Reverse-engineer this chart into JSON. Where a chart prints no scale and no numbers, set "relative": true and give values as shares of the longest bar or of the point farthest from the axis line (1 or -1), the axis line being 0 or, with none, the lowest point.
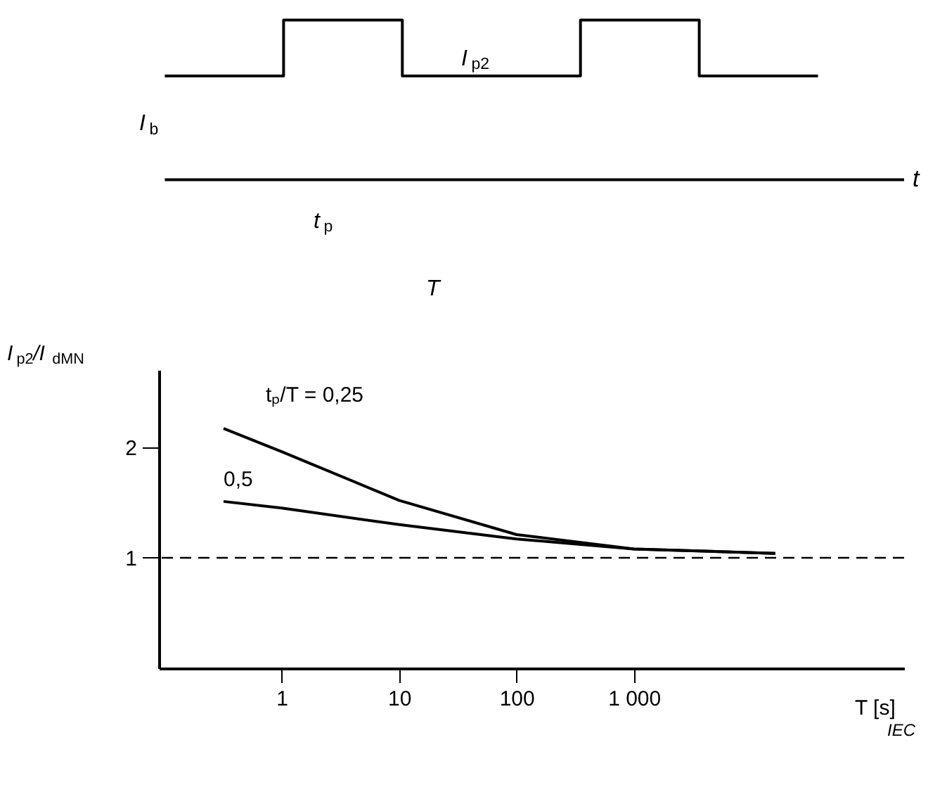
{
  "chart_data": [
    {
      "type": "step",
      "relative": true,
      "xlabel": "t",
      "categories": [
        null,
        null,
        null,
        null,
        null,
        null,
        null,
        null,
        null,
        null,
        null,
        null
      ],
      "series": [
        {
          "color": "#000000",
          "values": [
            0.65,
            0.65,
            1,
            1,
            0.65,
            0.65,
            0.65,
            1,
            1,
            0.65,
            0.65,
            0.65
          ]
        }
      ],
      "annotations": [
        "I$_{b}$",
        "I$_{p2}$",
        "t$_{p}$",
        "T"
      ],
      "legend": false
    },
    {
      "type": "line",
      "xlabel": "T [s]",
      "ylabel": "I$_{p2}$/I$_{dMN}$",
      "log": "x",
      "xlim": [
        0.09,
        200000
      ],
      "ylim": [
        0,
        2.7
      ],
      "xticks": [
        1,
        10,
        100,
        {
          "value": 1000,
          "label": "1 000"
        }
      ],
      "yticks": [
        1,
        2
      ],
      "grid": false,
      "legend": false,
      "line_style": "solid",
      "series": [
        {
          "name": "tₚ/T = 0,25",
          "color": "#000000",
          "x": [
            0.32,
            1,
            10,
            100,
            1000,
            16000
          ],
          "values": [
            2.17,
            1.96,
            1.52,
            1.21,
            1.08,
            1.04
          ]
        },
        {
          "name": "0,5",
          "color": "#000000",
          "x": [
            0.32,
            1,
            10,
            100,
            1000,
            16000
          ],
          "values": [
            1.51,
            1.45,
            1.3,
            1.17,
            1.08,
            1.04
          ]
        }
      ],
      "ref_lines": [
        {
          "axis": "y",
          "value": 1,
          "line_style": "dashed",
          "color": "#000000"
        }
      ],
      "annotations": [
        "IEC"
      ]
    }
  ]
}
